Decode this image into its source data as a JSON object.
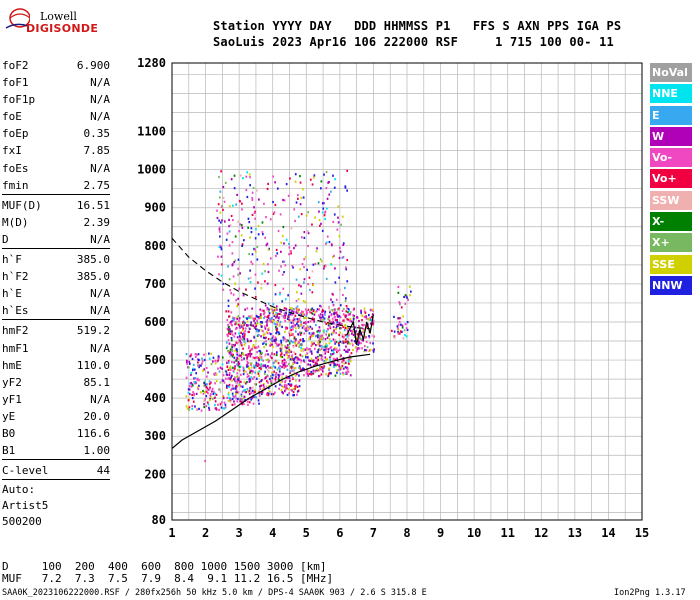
{
  "logo": {
    "line1": "Lowell",
    "line2": "DIGISONDE"
  },
  "header": {
    "line1": "Station YYYY DAY   DDD HHMMSS P1   FFS S AXN PPS IGA PS",
    "line2": "SaoLuis 2023 Apr16 106 222000 RSF     1 715 100 00- 11"
  },
  "params": {
    "group1": [
      {
        "label": "foF2",
        "value": "6.900"
      },
      {
        "label": "foF1",
        "value": "N/A"
      },
      {
        "label": "foF1p",
        "value": "N/A"
      },
      {
        "label": "foE",
        "value": "N/A"
      },
      {
        "label": "foEp",
        "value": "0.35"
      },
      {
        "label": "fxI",
        "value": "7.85"
      },
      {
        "label": "foEs",
        "value": "N/A"
      },
      {
        "label": "fmin",
        "value": "2.75"
      }
    ],
    "group2": [
      {
        "label": "MUF(D)",
        "value": "16.51"
      },
      {
        "label": "M(D)",
        "value": "2.39"
      },
      {
        "label": "D",
        "value": "N/A"
      }
    ],
    "group3": [
      {
        "label": "h`F",
        "value": "385.0"
      },
      {
        "label": "h`F2",
        "value": "385.0"
      },
      {
        "label": "h`E",
        "value": "N/A"
      },
      {
        "label": "h`Es",
        "value": "N/A"
      }
    ],
    "group4": [
      {
        "label": "hmF2",
        "value": "519.2"
      },
      {
        "label": "hmF1",
        "value": "N/A"
      },
      {
        "label": "hmE",
        "value": "110.0"
      },
      {
        "label": "yF2",
        "value": "85.1"
      },
      {
        "label": "yF1",
        "value": "N/A"
      },
      {
        "label": "yE",
        "value": "20.0"
      },
      {
        "label": "B0",
        "value": "116.6"
      },
      {
        "label": "B1",
        "value": "1.00"
      }
    ],
    "group5": [
      {
        "label": "C-level",
        "value": "44"
      }
    ],
    "auto": [
      "Auto:",
      "Artist5",
      "500200"
    ]
  },
  "legend": [
    {
      "label": "NoVal",
      "color": "#a0a0a0"
    },
    {
      "label": "NNE",
      "color": "#00e4f0"
    },
    {
      "label": "E",
      "color": "#38a8f0"
    },
    {
      "label": "W",
      "color": "#b000b8"
    },
    {
      "label": "Vo-",
      "color": "#f048c0"
    },
    {
      "label": "Vo+",
      "color": "#f00040"
    },
    {
      "label": "SSW",
      "color": "#f0b0b0"
    },
    {
      "label": "X-",
      "color": "#008000"
    },
    {
      "label": "X+",
      "color": "#78b860"
    },
    {
      "label": "SSE",
      "color": "#d0d000"
    },
    {
      "label": "NNW",
      "color": "#2020e0"
    }
  ],
  "muf_table": {
    "d_row": "D     100  200  400  600  800 1000 1500 3000 [km]",
    "muf_row": "MUF   7.2  7.3  7.5  7.9  8.4  9.1 11.2 16.5 [MHz]"
  },
  "footer": {
    "left": "SAA0K_2023106222000.RSF / 280fx256h 50 kHz 5.0 km / DPS-4 SAA0K 903 / 2.6 S 315.8 E",
    "right": "Ion2Png 1.3.17"
  },
  "chart_data": {
    "type": "scatter",
    "x_ticks": [
      1,
      2,
      3,
      4,
      5,
      6,
      7,
      8,
      9,
      10,
      11,
      12,
      13,
      14,
      15
    ],
    "y_ticks": [
      80,
      200,
      300,
      400,
      500,
      600,
      700,
      800,
      900,
      1000,
      1100,
      1280
    ],
    "xlim": [
      1,
      15
    ],
    "ylim": [
      80,
      1280
    ],
    "grid": true,
    "profile_line": {
      "x": [
        1.0,
        1.3,
        1.8,
        2.3,
        2.8,
        3.3,
        3.8,
        4.3,
        4.8,
        5.3,
        5.8,
        6.3,
        6.9
      ],
      "y": [
        268,
        290,
        315,
        340,
        370,
        400,
        425,
        450,
        470,
        485,
        497,
        508,
        515
      ]
    },
    "dashed_line": {
      "x": [
        1.0,
        1.5,
        2.0,
        2.5,
        3.0,
        3.5,
        4.0,
        4.5,
        5.0,
        5.5,
        6.0,
        6.5,
        6.9
      ],
      "y": [
        820,
        770,
        735,
        705,
        680,
        660,
        640,
        625,
        612,
        600,
        592,
        585,
        582
      ]
    },
    "trace_line": {
      "x": [
        6.2,
        6.4,
        6.5,
        6.6,
        6.7,
        6.8,
        6.9,
        7.0
      ],
      "y": [
        565,
        600,
        540,
        580,
        555,
        600,
        570,
        620
      ]
    },
    "echo_regions": [
      {
        "x": [
          1.4,
          2.6
        ],
        "y": [
          370,
          520
        ],
        "density": 0.5
      },
      {
        "x": [
          2.6,
          3.6
        ],
        "y": [
          385,
          620
        ],
        "density": 0.9
      },
      {
        "x": [
          3.6,
          4.8
        ],
        "y": [
          410,
          640
        ],
        "density": 0.9
      },
      {
        "x": [
          4.8,
          6.3
        ],
        "y": [
          460,
          640
        ],
        "density": 0.85
      },
      {
        "x": [
          6.3,
          7.0
        ],
        "y": [
          520,
          640
        ],
        "density": 0.7
      },
      {
        "x": [
          7.5,
          8.0
        ],
        "y": [
          560,
          620
        ],
        "density": 0.5
      },
      {
        "x": [
          7.7,
          8.1
        ],
        "y": [
          640,
          700
        ],
        "density": 0.3
      },
      {
        "x": [
          2.3,
          6.2
        ],
        "y": [
          620,
          1000
        ],
        "density": 0.12
      },
      {
        "x": [
          1.4,
          2.0
        ],
        "y": [
          200,
          240
        ],
        "density": 0.02
      }
    ]
  }
}
